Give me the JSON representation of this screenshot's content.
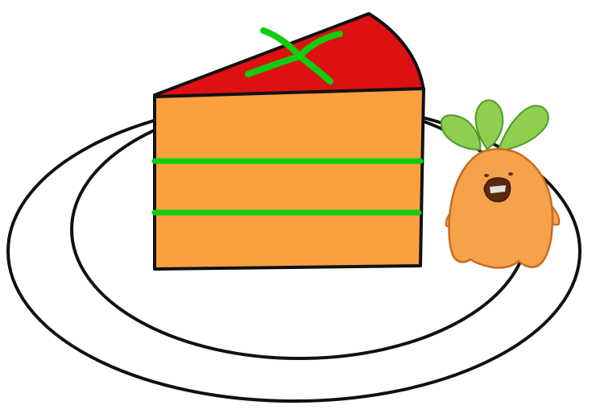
{
  "scene": {
    "subject": "cake-slice-on-plate-with-carrot-mascot",
    "colors": {
      "background": "#ffffff",
      "outline": "#111111",
      "cake_sponge": "#fca03f",
      "cake_top": "#dd1111",
      "filling_stripe": "#11cc11",
      "garnish": "#11cc11",
      "mascot_body": "#f6a24a",
      "mascot_outline": "#c86a1e",
      "mascot_mouth": "#5a2a10",
      "mascot_leaves": "#8fcf4f",
      "mascot_leaf_outline": "#4e9a2a"
    },
    "elements": {
      "plate": "plate",
      "cake": "cake-slice",
      "garnish": "green-garnish",
      "mascot": "carrot-mascot"
    }
  }
}
